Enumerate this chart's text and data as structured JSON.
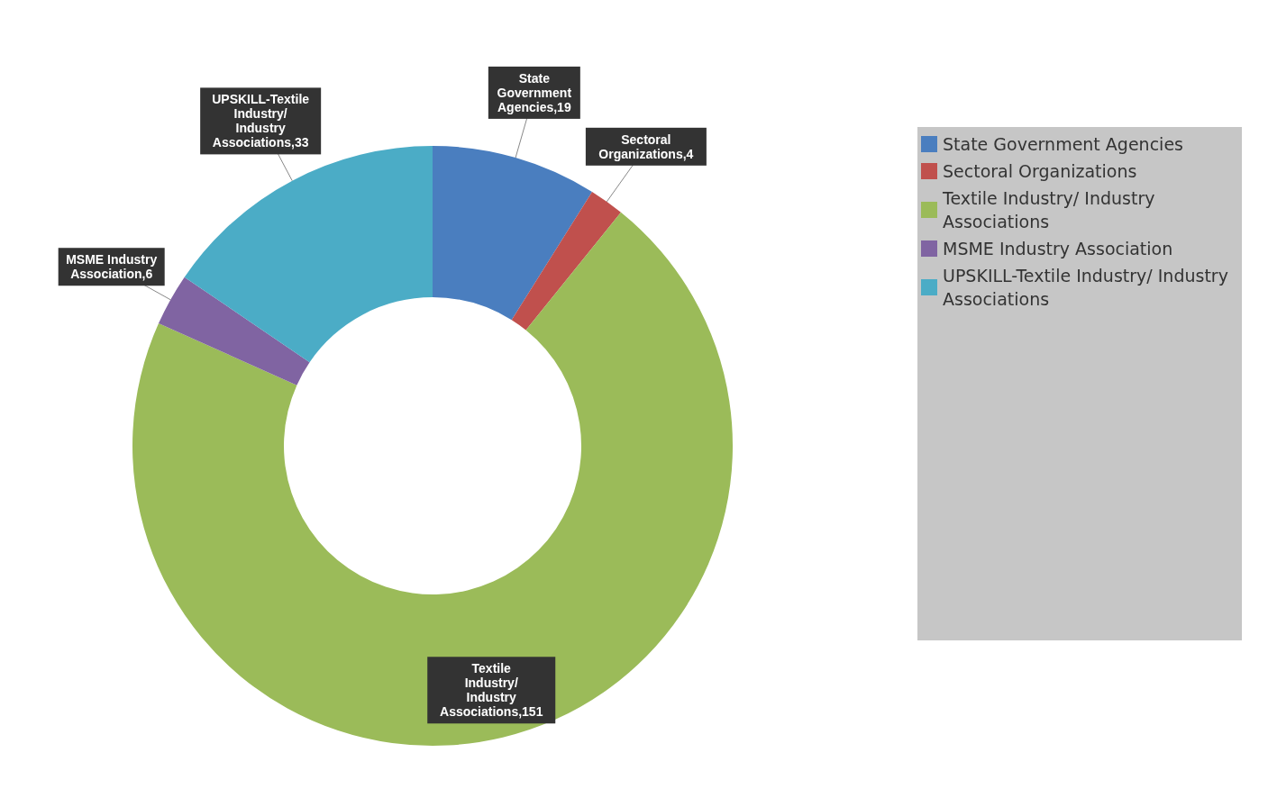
{
  "chart_data": {
    "type": "donut",
    "categories": [
      "State Government Agencies",
      "Sectoral Organizations",
      "Textile Industry/ Industry Associations",
      "MSME Industry Association",
      "UPSKILL-Textile Industry/ Industry Associations"
    ],
    "values": [
      19,
      4,
      151,
      6,
      33
    ],
    "colors": [
      "#4a7ebf",
      "#c0504d",
      "#9bbb59",
      "#8064a2",
      "#4bacc6"
    ],
    "value_labels": [
      "State Government Agencies,19",
      "Sectoral Organizations,4",
      "Textile Industry/ Industry Associations,151",
      "MSME Industry Association,6",
      "UPSKILL-Textile Industry/ Industry Associations,33"
    ],
    "legend": "right"
  }
}
